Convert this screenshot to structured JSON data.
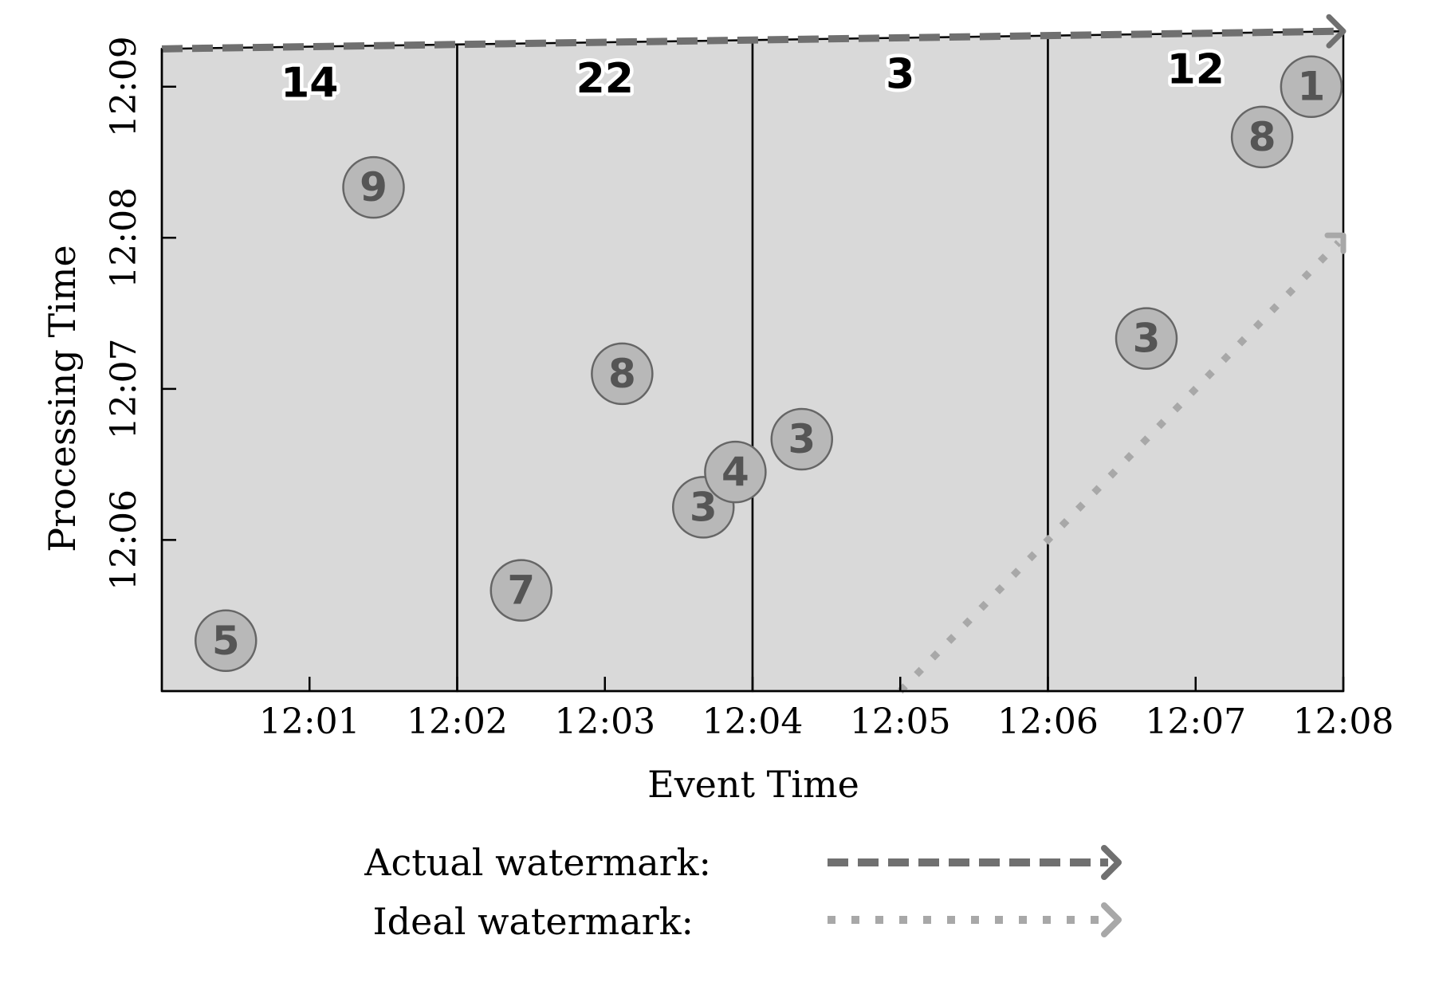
{
  "chart_data": {
    "type": "scatter",
    "xlabel": "Event Time",
    "ylabel": "Processing Time",
    "x_ticks": [
      "12:01",
      "12:02",
      "12:03",
      "12:04",
      "12:05",
      "12:06",
      "12:07",
      "12:08"
    ],
    "y_ticks": [
      "12:06",
      "12:07",
      "12:08",
      "12:09"
    ],
    "xlim": [
      "12:00:00",
      "12:08:00"
    ],
    "ylim": [
      "12:05:00",
      "12:09:17"
    ],
    "windows": [
      {
        "start": "12:00",
        "end": "12:02",
        "result": "14"
      },
      {
        "start": "12:02",
        "end": "12:04",
        "result": "22"
      },
      {
        "start": "12:04",
        "end": "12:06",
        "result": "3"
      },
      {
        "start": "12:06",
        "end": "12:08",
        "result": "12"
      }
    ],
    "points": [
      {
        "value": "5",
        "event_time": "12:00:26",
        "processing_time": "12:05:20"
      },
      {
        "value": "9",
        "event_time": "12:01:26",
        "processing_time": "12:08:20"
      },
      {
        "value": "7",
        "event_time": "12:02:26",
        "processing_time": "12:05:40"
      },
      {
        "value": "8",
        "event_time": "12:03:07",
        "processing_time": "12:07:06"
      },
      {
        "value": "3",
        "event_time": "12:03:40",
        "processing_time": "12:06:13"
      },
      {
        "value": "4",
        "event_time": "12:03:53",
        "processing_time": "12:06:27"
      },
      {
        "value": "3",
        "event_time": "12:04:20",
        "processing_time": "12:06:40"
      },
      {
        "value": "3",
        "event_time": "12:06:40",
        "processing_time": "12:07:20"
      },
      {
        "value": "8",
        "event_time": "12:07:27",
        "processing_time": "12:08:40"
      },
      {
        "value": "1",
        "event_time": "12:07:47",
        "processing_time": "12:09:00"
      }
    ],
    "series": [
      {
        "name": "Actual watermark",
        "style": "dashed",
        "color": "#707070",
        "points": [
          [
            "12:00:00",
            "12:09:15"
          ],
          [
            "12:08:00",
            "12:09:22"
          ]
        ]
      },
      {
        "name": "Ideal watermark",
        "style": "dotted",
        "color": "#a8a8a8",
        "points": [
          [
            "12:05:00",
            "12:05:00"
          ],
          [
            "12:08:00",
            "12:08:00"
          ]
        ]
      }
    ],
    "legend": {
      "placement": "bottom",
      "items": [
        {
          "label": "Actual watermark:",
          "style": "dashed",
          "color": "#707070"
        },
        {
          "label": "Ideal watermark:",
          "style": "dotted",
          "color": "#a8a8a8"
        }
      ]
    },
    "colors": {
      "window_fill": "#d9d9d9",
      "point_fill": "#b8b8b8",
      "point_text": "#555555",
      "result_text": "#000000"
    }
  }
}
